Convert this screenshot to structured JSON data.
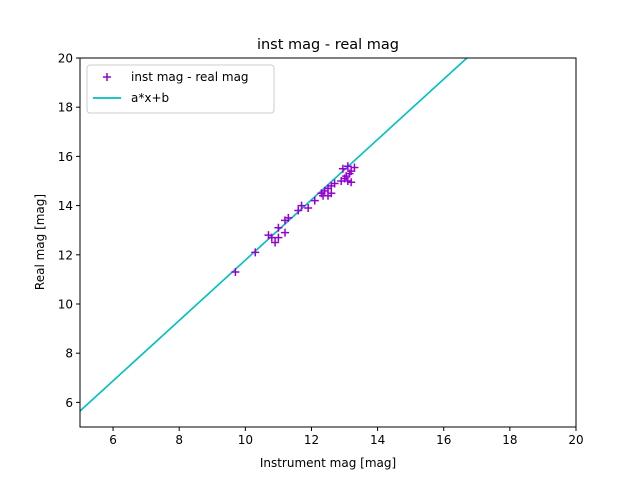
{
  "colors": {
    "scatter": "#9400d3",
    "fit_line": "#00bfbf",
    "axes": "#000000",
    "background": "#ffffff"
  },
  "chart_data": {
    "type": "scatter",
    "title": "inst mag - real mag",
    "xlabel": "Instrument mag [mag]",
    "ylabel": "Real mag [mag]",
    "xlim": [
      5,
      20
    ],
    "ylim": [
      5,
      20
    ],
    "xticks": [
      6,
      8,
      10,
      12,
      14,
      16,
      18,
      20
    ],
    "yticks": [
      6,
      8,
      10,
      12,
      14,
      16,
      18,
      20
    ],
    "grid": false,
    "legend_position": "top-left",
    "series": [
      {
        "name": "inst mag - real mag",
        "kind": "scatter",
        "marker": "+",
        "color": "#9400d3",
        "points": [
          [
            9.7,
            11.3
          ],
          [
            10.3,
            12.1
          ],
          [
            10.7,
            12.8
          ],
          [
            10.8,
            12.7
          ],
          [
            10.9,
            12.5
          ],
          [
            11.0,
            12.7
          ],
          [
            11.0,
            13.1
          ],
          [
            11.2,
            12.9
          ],
          [
            11.2,
            13.4
          ],
          [
            11.3,
            13.5
          ],
          [
            11.6,
            13.8
          ],
          [
            11.7,
            14.0
          ],
          [
            11.9,
            13.9
          ],
          [
            12.1,
            14.2
          ],
          [
            12.3,
            14.5
          ],
          [
            12.35,
            14.4
          ],
          [
            12.4,
            14.6
          ],
          [
            12.5,
            14.4
          ],
          [
            12.5,
            14.7
          ],
          [
            12.6,
            14.5
          ],
          [
            12.6,
            14.8
          ],
          [
            12.7,
            14.9
          ],
          [
            12.9,
            15.0
          ],
          [
            12.95,
            15.5
          ],
          [
            13.0,
            15.1
          ],
          [
            13.05,
            15.2
          ],
          [
            13.1,
            15.0
          ],
          [
            13.1,
            15.6
          ],
          [
            13.15,
            15.3
          ],
          [
            13.2,
            14.95
          ],
          [
            13.2,
            15.4
          ],
          [
            13.3,
            15.55
          ]
        ]
      },
      {
        "name": "a*x+b",
        "kind": "line",
        "color": "#00bfbf",
        "points": [
          [
            5.0,
            5.65
          ],
          [
            16.7,
            20.0
          ]
        ]
      }
    ]
  }
}
